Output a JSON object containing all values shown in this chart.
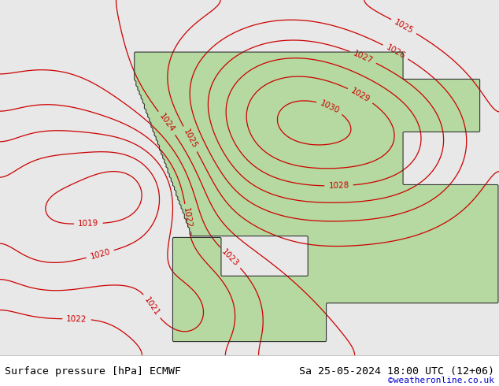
{
  "title_left": "Surface pressure [hPa] ECMWF",
  "title_right": "Sa 25-05-2024 18:00 UTC (12+06)",
  "credit": "©weatheronline.co.uk",
  "contour_color": "#cc0000",
  "land_color": "#b5d9a0",
  "sea_color": "#e8e8e8",
  "border_color": "#333333",
  "label_fontsize": 7.5,
  "title_fontsize": 9.5,
  "credit_fontsize": 8,
  "credit_color": "#0000cc",
  "pressure_min": 1018,
  "pressure_max": 1030,
  "pressure_step": 1,
  "figsize": [
    6.34,
    4.9
  ],
  "dpi": 100
}
